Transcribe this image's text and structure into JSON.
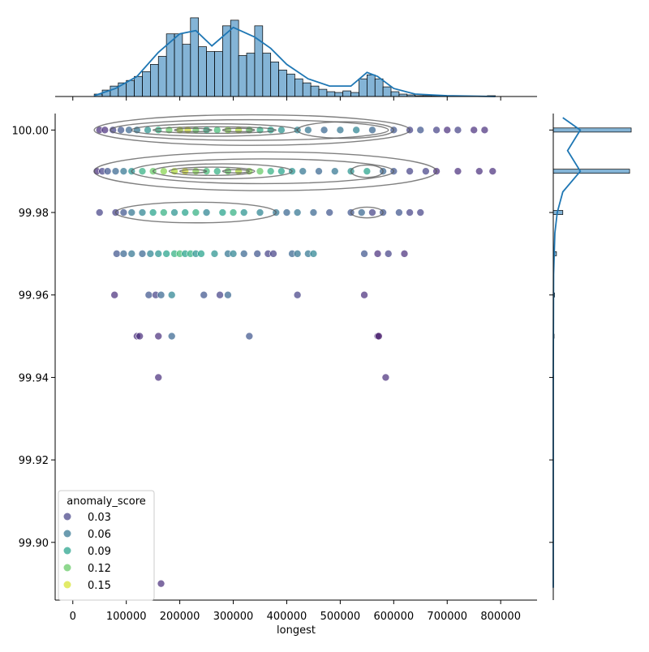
{
  "chart_data": {
    "type": "jointplot",
    "x_label": "longest",
    "xlim": [
      -33000,
      868000
    ],
    "xticks": [
      0,
      100000,
      200000,
      300000,
      400000,
      500000,
      600000,
      700000,
      800000
    ],
    "ylim": [
      99.886,
      100.004
    ],
    "yticks": [
      {
        "value": 99.9,
        "label": "99.90"
      },
      {
        "value": 99.92,
        "label": "99.92"
      },
      {
        "value": 99.94,
        "label": "99.94"
      },
      {
        "value": 99.96,
        "label": "99.96"
      },
      {
        "value": 99.98,
        "label": "99.98"
      },
      {
        "value": 100,
        "label": "100.00"
      }
    ],
    "colormap": [
      "#440154",
      "#482878",
      "#3e4989",
      "#31688e",
      "#26828e",
      "#1f9e89",
      "#35b779",
      "#6ece58",
      "#b5de2b",
      "#fde725"
    ],
    "hue_lim": [
      0,
      0.16
    ],
    "legend": {
      "title": "anomaly_score",
      "values": [
        0.03,
        0.06,
        0.09,
        0.12,
        0.15
      ],
      "corner": "lower left"
    },
    "rows": [
      {
        "y": 100,
        "x": [
          50000,
          60000,
          75000,
          90000,
          105000,
          120000,
          140000,
          160000,
          180000,
          200000,
          215000,
          230000,
          250000,
          270000,
          290000,
          310000,
          330000,
          350000,
          370000,
          390000,
          420000,
          440000,
          470000,
          500000,
          530000,
          560000,
          600000,
          630000,
          650000,
          680000,
          700000,
          720000,
          750000,
          770000
        ],
        "hue": [
          0.02,
          0.02,
          0.03,
          0.04,
          0.05,
          0.06,
          0.08,
          0.1,
          0.12,
          0.14,
          0.15,
          0.12,
          0.1,
          0.11,
          0.13,
          0.14,
          0.12,
          0.1,
          0.09,
          0.08,
          0.07,
          0.06,
          0.05,
          0.06,
          0.07,
          0.05,
          0.04,
          0.03,
          0.04,
          0.03,
          0.02,
          0.03,
          0.02,
          0.02
        ]
      },
      {
        "y": 99.99,
        "x": [
          45000,
          55000,
          65000,
          80000,
          95000,
          110000,
          130000,
          150000,
          170000,
          190000,
          210000,
          230000,
          250000,
          270000,
          290000,
          310000,
          330000,
          350000,
          370000,
          390000,
          410000,
          430000,
          460000,
          490000,
          520000,
          550000,
          580000,
          600000,
          630000,
          660000,
          680000,
          720000,
          760000,
          785000
        ],
        "hue": [
          0.02,
          0.03,
          0.04,
          0.05,
          0.06,
          0.08,
          0.1,
          0.12,
          0.13,
          0.14,
          0.15,
          0.13,
          0.11,
          0.1,
          0.12,
          0.14,
          0.13,
          0.12,
          0.1,
          0.09,
          0.08,
          0.06,
          0.05,
          0.06,
          0.08,
          0.09,
          0.05,
          0.04,
          0.03,
          0.03,
          0.02,
          0.02,
          0.02,
          0.02
        ]
      },
      {
        "y": 99.98,
        "x": [
          50000,
          80000,
          95000,
          110000,
          130000,
          150000,
          170000,
          190000,
          210000,
          230000,
          250000,
          280000,
          300000,
          320000,
          350000,
          380000,
          400000,
          420000,
          450000,
          480000,
          520000,
          540000,
          560000,
          580000,
          610000,
          630000,
          650000
        ],
        "hue": [
          0.03,
          0.03,
          0.04,
          0.06,
          0.07,
          0.09,
          0.1,
          0.08,
          0.09,
          0.1,
          0.07,
          0.09,
          0.1,
          0.08,
          0.07,
          0.06,
          0.05,
          0.06,
          0.05,
          0.04,
          0.04,
          0.05,
          0.03,
          0.04,
          0.04,
          0.03,
          0.03
        ]
      },
      {
        "y": 99.97,
        "x": [
          82000,
          95000,
          110000,
          130000,
          145000,
          160000,
          175000,
          190000,
          200000,
          210000,
          220000,
          230000,
          240000,
          265000,
          290000,
          300000,
          320000,
          345000,
          365000,
          375000,
          410000,
          420000,
          440000,
          450000,
          545000,
          570000,
          590000,
          620000
        ],
        "hue": [
          0.04,
          0.05,
          0.06,
          0.05,
          0.07,
          0.08,
          0.09,
          0.1,
          0.11,
          0.09,
          0.1,
          0.08,
          0.09,
          0.08,
          0.06,
          0.07,
          0.05,
          0.04,
          0.03,
          0.03,
          0.05,
          0.06,
          0.06,
          0.07,
          0.04,
          0.02,
          0.03,
          0.02
        ]
      },
      {
        "y": 99.96,
        "x": [
          78000,
          142000,
          155000,
          165000,
          185000,
          245000,
          275000,
          290000,
          420000,
          545000
        ],
        "hue": [
          0.02,
          0.04,
          0.03,
          0.05,
          0.07,
          0.04,
          0.03,
          0.05,
          0.03,
          0.02
        ]
      },
      {
        "y": 99.95,
        "x": [
          120000,
          125000,
          160000,
          185000,
          330000,
          570000,
          572000
        ],
        "hue": [
          0.02,
          0.02,
          0.02,
          0.05,
          0.04,
          0.02,
          0.01
        ]
      },
      {
        "y": 99.94,
        "x": [
          160000,
          585000
        ],
        "hue": [
          0.02,
          0.02
        ]
      },
      {
        "y": 99.89,
        "x": [
          165000
        ],
        "hue": [
          0.02
        ]
      }
    ],
    "contours": [
      {
        "x": [
          40000,
          630000
        ],
        "y": [
          99.9963,
          100.0037
        ]
      },
      {
        "x": [
          70000,
          590000
        ],
        "y": [
          99.9975,
          100.0025
        ]
      },
      {
        "x": [
          110000,
          420000
        ],
        "y": [
          99.9985,
          100.0015
        ]
      },
      {
        "x": [
          150000,
          380000
        ],
        "y": [
          99.9992,
          100.0008
        ]
      },
      {
        "x": [
          190000,
          260000
        ],
        "y": [
          99.9996,
          100.0004
        ]
      },
      {
        "x": [
          280000,
          340000
        ],
        "y": [
          99.9996,
          100.0004
        ]
      },
      {
        "x": [
          420000,
          600000
        ],
        "y": [
          99.998,
          100.002
        ]
      },
      {
        "x": [
          40000,
          680000
        ],
        "y": [
          99.9853,
          99.9947
        ]
      },
      {
        "x": [
          110000,
          600000
        ],
        "y": [
          99.987,
          99.993
        ]
      },
      {
        "x": [
          150000,
          410000
        ],
        "y": [
          99.9882,
          99.9918
        ]
      },
      {
        "x": [
          180000,
          340000
        ],
        "y": [
          99.989,
          99.991
        ]
      },
      {
        "x": [
          200000,
          250000
        ],
        "y": [
          99.9896,
          99.9904
        ]
      },
      {
        "x": [
          280000,
          330000
        ],
        "y": [
          99.9896,
          99.9904
        ]
      },
      {
        "x": [
          520000,
          580000
        ],
        "y": [
          99.9885,
          99.9915
        ]
      },
      {
        "x": [
          80000,
          380000
        ],
        "y": [
          99.9775,
          99.9825
        ]
      },
      {
        "x": [
          520000,
          580000
        ],
        "y": [
          99.9787,
          99.9813
        ]
      }
    ],
    "top_hist": {
      "color": "#1f77b4",
      "ylim": [
        0,
        105
      ],
      "bins": [
        40000,
        55000,
        70000,
        85000,
        100000,
        115000,
        130000,
        145000,
        160000,
        175000,
        190000,
        205000,
        220000,
        235000,
        250000,
        265000,
        280000,
        295000,
        310000,
        325000,
        340000,
        355000,
        370000,
        385000,
        400000,
        415000,
        430000,
        445000,
        460000,
        475000,
        490000,
        505000,
        520000,
        535000,
        550000,
        565000,
        580000,
        595000,
        610000,
        625000,
        640000,
        655000,
        670000,
        685000,
        700000,
        715000,
        730000,
        745000,
        760000,
        775000,
        790000
      ],
      "counts": [
        3,
        8,
        13,
        17,
        20,
        25,
        31,
        40,
        50,
        78,
        78,
        65,
        98,
        62,
        56,
        56,
        88,
        95,
        51,
        54,
        88,
        54,
        43,
        33,
        28,
        22,
        17,
        13,
        9,
        6,
        5,
        7,
        5,
        22,
        27,
        22,
        12,
        6,
        3,
        2,
        1,
        1,
        1,
        1,
        0,
        1,
        0,
        0,
        0,
        1
      ],
      "kde_x": [
        40000,
        80000,
        120000,
        160000,
        200000,
        230000,
        260000,
        300000,
        340000,
        370000,
        400000,
        440000,
        480000,
        520000,
        550000,
        570000,
        600000,
        640000,
        700000,
        790000
      ],
      "kde_y": [
        1,
        10,
        25,
        55,
        78,
        82,
        63,
        86,
        74,
        60,
        40,
        22,
        13,
        13,
        30,
        25,
        10,
        3,
        1,
        0
      ]
    },
    "right_hist": {
      "color": "#1f77b4",
      "xlim": [
        0,
        500
      ],
      "bins": [
        99.8895,
        99.8905,
        99.9395,
        99.9405,
        99.9495,
        99.9505,
        99.9595,
        99.9605,
        99.9695,
        99.9705,
        99.9795,
        99.9805,
        99.9895,
        99.9905,
        99.9995,
        100.0005
      ],
      "counts": [
        1,
        0,
        2,
        0,
        5,
        0,
        8,
        0,
        20,
        0,
        60,
        0,
        480,
        0,
        490
      ],
      "kde_y": [
        99.889,
        99.94,
        99.965,
        99.975,
        99.98,
        99.985,
        99.99,
        99.995,
        100,
        100.003
      ],
      "kde_x": [
        0,
        0,
        2,
        10,
        25,
        60,
        170,
        90,
        170,
        60
      ]
    }
  }
}
